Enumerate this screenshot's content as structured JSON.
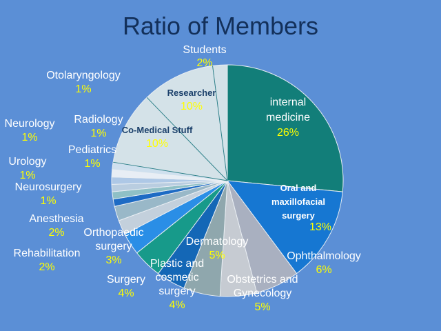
{
  "chart_data": {
    "type": "pie",
    "title": "Ratio of Members",
    "start_angle_deg": 0,
    "direction": "clockwise",
    "slices": [
      {
        "name": "internal medicine",
        "value": 26,
        "label": "26%",
        "color": "#127e79"
      },
      {
        "name": "Oral and maxillofacial surgery",
        "value": 13,
        "label": "13%",
        "color": "#1677d2"
      },
      {
        "name": "Ophthalmology",
        "value": 6,
        "label": "6%",
        "color": "#a9b0c0"
      },
      {
        "name": "Obstetrics and Gynecology",
        "value": 5,
        "label": "5%",
        "color": "#c6cbd2"
      },
      {
        "name": "Dermatology",
        "value": 5,
        "label": "5%",
        "color": "#8fa7ad"
      },
      {
        "name": "Plastic and cosmetic surgery",
        "value": 4,
        "label": "4%",
        "color": "#1467b6"
      },
      {
        "name": "Surgery",
        "value": 4,
        "label": "4%",
        "color": "#179a8a"
      },
      {
        "name": "Orthopaedic surgery",
        "value": 3,
        "label": "3%",
        "color": "#2a8ee6"
      },
      {
        "name": "Rehabilitation",
        "value": 2,
        "label": "2%",
        "color": "#c3d0dc"
      },
      {
        "name": "Anesthesia",
        "value": 2,
        "label": "2%",
        "color": "#99b8c8"
      },
      {
        "name": "Neurosurgery",
        "value": 1,
        "label": "1%",
        "color": "#1d6bc4"
      },
      {
        "name": "Urology",
        "value": 1,
        "label": "1%",
        "color": "#8fc0c6"
      },
      {
        "name": "Neurology",
        "value": 1,
        "label": "1%",
        "color": "#b9cde0"
      },
      {
        "name": "Pediatrics",
        "value": 1,
        "label": "1%",
        "color": "#aec8e6"
      },
      {
        "name": "Radiology",
        "value": 1,
        "label": "1%",
        "color": "#e8eef5"
      },
      {
        "name": "Otolaryngology",
        "value": 1,
        "label": "1%",
        "color": "#cfe0ee"
      },
      {
        "name": "Co-Medical Stuff",
        "value": 10,
        "label": "10%",
        "color": "#d4e2e8"
      },
      {
        "name": "Researcher",
        "value": 10,
        "label": "10%",
        "color": "#d4e2e8"
      },
      {
        "name": "Students",
        "value": 2,
        "label": "2%",
        "color": "#d4e2e8"
      }
    ]
  },
  "labels": [
    {
      "key": "internal_medicine",
      "lines": [
        "internal",
        "medicine"
      ],
      "value": "26%"
    },
    {
      "key": "oral",
      "lines": [
        "Oral and",
        "maxillofacial",
        "surgery"
      ],
      "value": "13%"
    },
    {
      "key": "ophthalmology",
      "lines": [
        "Ophthalmology"
      ],
      "value": "6%"
    },
    {
      "key": "obstetrics",
      "lines": [
        "Obstetrics and",
        "Gynecology"
      ],
      "value": "5%"
    },
    {
      "key": "dermatology",
      "lines": [
        "Dermatology"
      ],
      "value": "5%"
    },
    {
      "key": "plastic",
      "lines": [
        "Plastic  and",
        "cosmetic",
        "surgery"
      ],
      "value": "4%"
    },
    {
      "key": "surgery",
      "lines": [
        "Surgery"
      ],
      "value": "4%"
    },
    {
      "key": "orthopaedic",
      "lines": [
        "Orthopaedic",
        "surgery"
      ],
      "value": "3%"
    },
    {
      "key": "rehabilitation",
      "lines": [
        "Rehabilitation"
      ],
      "value": "2%"
    },
    {
      "key": "anesthesia",
      "lines": [
        "Anesthesia"
      ],
      "value": "2%"
    },
    {
      "key": "neurosurgery",
      "lines": [
        "Neurosurgery"
      ],
      "value": "1%"
    },
    {
      "key": "urology",
      "lines": [
        "Urology"
      ],
      "value": "1%"
    },
    {
      "key": "neurology",
      "lines": [
        "Neurology"
      ],
      "value": "1%"
    },
    {
      "key": "pediatrics",
      "lines": [
        "Pediatrics"
      ],
      "value": "1%"
    },
    {
      "key": "radiology",
      "lines": [
        "Radiology"
      ],
      "value": "1%"
    },
    {
      "key": "otolaryngology",
      "lines": [
        "Otolaryngology"
      ],
      "value": "1%"
    },
    {
      "key": "comedical",
      "lines": [
        "Co-Medical Stuff"
      ],
      "value": "10%"
    },
    {
      "key": "researcher",
      "lines": [
        "Researcher"
      ],
      "value": "10%"
    },
    {
      "key": "students",
      "lines": [
        "Students"
      ],
      "value": "2%"
    }
  ],
  "colors": {
    "background": "#5b8fd6",
    "title": "#13305a",
    "label_text": "#ffffff",
    "value_text": "#ffff00",
    "inner_label_text": "#1a3f6a"
  }
}
